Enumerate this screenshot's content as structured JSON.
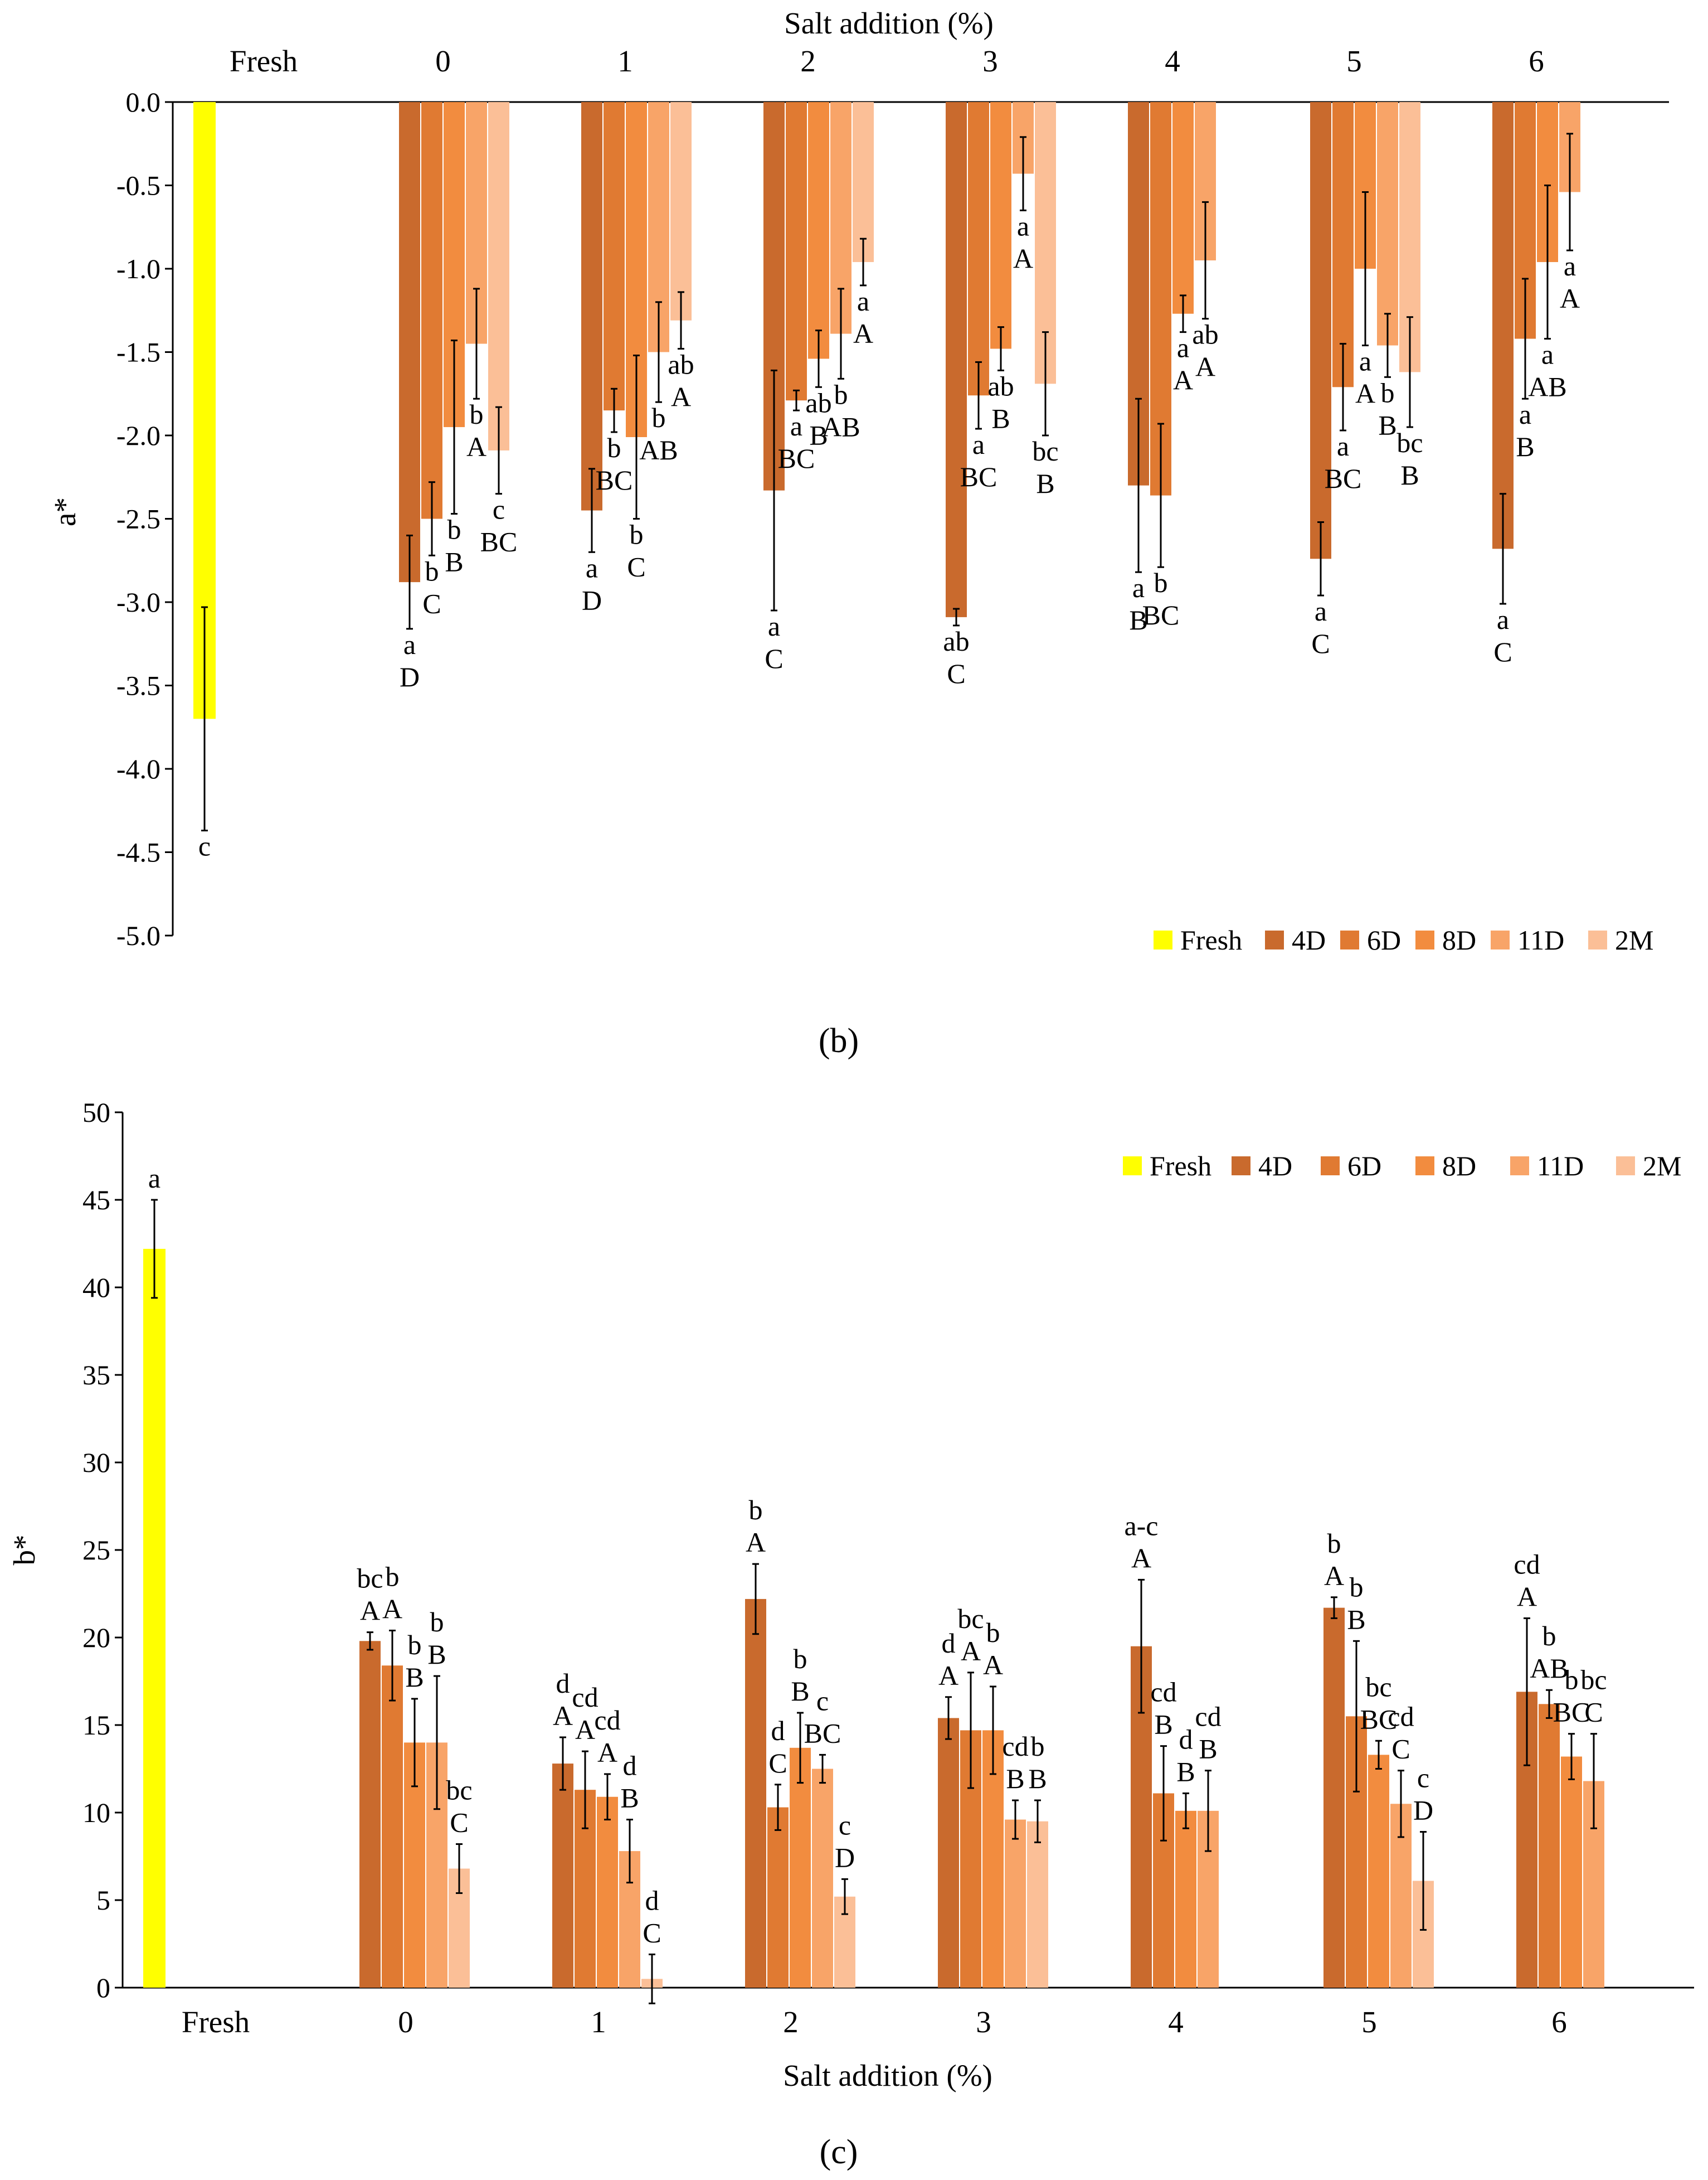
{
  "chart_data": [
    {
      "type": "bar",
      "panel": "(b)",
      "ylabel": "a*",
      "xlabel": "Salt addition (%)",
      "xlabel_position": "top",
      "ylim": [
        -5.0,
        0.0
      ],
      "yticks": [
        0.0,
        -0.5,
        -1.0,
        -1.5,
        -2.0,
        -2.5,
        -3.0,
        -3.5,
        -4.0,
        -4.5,
        -5.0
      ],
      "ytick_labels": [
        "0.0",
        "-0.5",
        "-1.0",
        "-1.5",
        "-2.0",
        "-2.5",
        "-3.0",
        "-3.5",
        "-4.0",
        "-4.5",
        "-5.0"
      ],
      "categories": [
        "Fresh",
        "0",
        "1",
        "2",
        "3",
        "4",
        "5",
        "6"
      ],
      "fresh": {
        "value": -3.7,
        "err": 0.67,
        "label": [
          "c"
        ]
      },
      "series": [
        {
          "name": "4D",
          "color": "#c96a2d",
          "values": [
            null,
            -2.88,
            -2.45,
            -2.33,
            -3.09,
            -2.3,
            -2.74,
            -2.68
          ],
          "errors": [
            null,
            0.28,
            0.25,
            0.72,
            0.05,
            0.52,
            0.22,
            0.33
          ],
          "labels": [
            null,
            [
              "a",
              "D"
            ],
            [
              "a",
              "D"
            ],
            [
              "a",
              "C"
            ],
            [
              "ab",
              "C"
            ],
            [
              "a",
              "B"
            ],
            [
              "a",
              "C"
            ],
            [
              "a",
              "C"
            ]
          ]
        },
        {
          "name": "6D",
          "color": "#e07a32",
          "values": [
            null,
            -2.5,
            -1.85,
            -1.79,
            -1.76,
            -2.36,
            -1.71,
            -1.42
          ],
          "errors": [
            null,
            0.22,
            0.13,
            0.06,
            0.2,
            0.43,
            0.26,
            0.36
          ],
          "labels": [
            null,
            [
              "b",
              "C"
            ],
            [
              "b",
              "BC"
            ],
            [
              "a",
              "BC"
            ],
            [
              "a",
              "BC"
            ],
            [
              "b",
              "BC"
            ],
            [
              "a",
              "BC"
            ],
            [
              "a",
              "B"
            ]
          ]
        },
        {
          "name": "8D",
          "color": "#f28c3f",
          "values": [
            null,
            -1.95,
            -2.01,
            -1.54,
            -1.48,
            -1.27,
            -1.0,
            -0.96
          ],
          "errors": [
            null,
            0.52,
            0.49,
            0.17,
            0.13,
            0.11,
            0.46,
            0.46
          ],
          "labels": [
            null,
            [
              "b",
              "B"
            ],
            [
              "b",
              "C"
            ],
            [
              "ab",
              "B"
            ],
            [
              "ab",
              "B"
            ],
            [
              "a",
              "A"
            ],
            [
              "a",
              "A"
            ],
            [
              "a",
              "AB"
            ]
          ]
        },
        {
          "name": "11D",
          "color": "#f8a468",
          "values": [
            null,
            -1.45,
            -1.5,
            -1.39,
            -0.43,
            -0.95,
            -1.46,
            -0.54
          ],
          "errors": [
            null,
            0.33,
            0.3,
            0.27,
            0.22,
            0.35,
            0.19,
            0.35
          ],
          "labels": [
            null,
            [
              "b",
              "A"
            ],
            [
              "b",
              "AB"
            ],
            [
              "b",
              "AB"
            ],
            [
              "a",
              "A"
            ],
            [
              "ab",
              "A"
            ],
            [
              "b",
              "B"
            ],
            [
              "a",
              "A"
            ]
          ]
        },
        {
          "name": "2M",
          "color": "#fbbf97",
          "values": [
            null,
            -2.09,
            -1.31,
            -0.96,
            -1.69,
            null,
            -1.62,
            null
          ],
          "errors": [
            null,
            0.26,
            0.17,
            0.14,
            0.31,
            null,
            0.33,
            null
          ],
          "labels": [
            null,
            [
              "c",
              "BC"
            ],
            [
              "ab",
              "A"
            ],
            [
              "a",
              "A"
            ],
            [
              "bc",
              "B"
            ],
            null,
            [
              "bc",
              "B"
            ],
            null
          ]
        }
      ],
      "legend": [
        "Fresh",
        "4D",
        "6D",
        "8D",
        "11D",
        "2M"
      ],
      "legend_position": "bottom-right"
    },
    {
      "type": "bar",
      "panel": "(c)",
      "ylabel": "b*",
      "xlabel": "Salt addition (%)",
      "xlabel_position": "bottom",
      "ylim": [
        0,
        50
      ],
      "yticks": [
        0,
        5,
        10,
        15,
        20,
        25,
        30,
        35,
        40,
        45,
        50
      ],
      "ytick_labels": [
        "0",
        "5",
        "10",
        "15",
        "20",
        "25",
        "30",
        "35",
        "40",
        "45",
        "50"
      ],
      "categories": [
        "Fresh",
        "0",
        "1",
        "2",
        "3",
        "4",
        "5",
        "6"
      ],
      "fresh": {
        "value": 42.2,
        "err": 2.8,
        "label": [
          "a"
        ]
      },
      "series": [
        {
          "name": "4D",
          "color": "#c96a2d",
          "values": [
            null,
            19.8,
            12.8,
            22.2,
            15.4,
            19.5,
            21.7,
            16.9
          ],
          "errors": [
            null,
            0.5,
            1.5,
            2.0,
            1.2,
            3.8,
            0.6,
            4.2
          ],
          "labels": [
            null,
            [
              "bc",
              "A"
            ],
            [
              "d",
              "A"
            ],
            [
              "b",
              "A"
            ],
            [
              "d",
              "A"
            ],
            [
              "a-c",
              "A"
            ],
            [
              "b",
              "A"
            ],
            [
              "cd",
              "A"
            ]
          ]
        },
        {
          "name": "6D",
          "color": "#e07a32",
          "values": [
            null,
            18.4,
            11.3,
            10.3,
            14.7,
            11.1,
            15.5,
            16.2
          ],
          "errors": [
            null,
            2.0,
            2.2,
            1.3,
            3.3,
            2.7,
            4.3,
            0.8
          ],
          "labels": [
            null,
            [
              "b",
              "A"
            ],
            [
              "cd",
              "A"
            ],
            [
              "d",
              "C"
            ],
            [
              "bc",
              "A"
            ],
            [
              "cd",
              "B"
            ],
            [
              "b",
              "B"
            ],
            [
              "b",
              "AB"
            ]
          ]
        },
        {
          "name": "8D",
          "color": "#f28c3f",
          "values": [
            null,
            14.0,
            10.9,
            13.7,
            14.7,
            10.1,
            13.3,
            13.2
          ],
          "errors": [
            null,
            2.5,
            1.3,
            2.0,
            2.5,
            1.0,
            0.8,
            1.3
          ],
          "labels": [
            null,
            [
              "b",
              "B"
            ],
            [
              "cd",
              "A"
            ],
            [
              "b",
              "B"
            ],
            [
              "b",
              "A"
            ],
            [
              "d",
              "B"
            ],
            [
              "bc",
              "BC"
            ],
            [
              "b",
              "BC"
            ]
          ]
        },
        {
          "name": "11D",
          "color": "#f8a468",
          "values": [
            null,
            14.0,
            7.8,
            12.5,
            9.6,
            10.1,
            10.5,
            11.8
          ],
          "errors": [
            null,
            3.8,
            1.8,
            0.8,
            1.1,
            2.3,
            1.9,
            2.7
          ],
          "labels": [
            null,
            [
              "b",
              "B"
            ],
            [
              "d",
              "B"
            ],
            [
              "c",
              "BC"
            ],
            [
              "cd",
              "B"
            ],
            [
              "cd",
              "B"
            ],
            [
              "cd",
              "C"
            ],
            [
              "bc",
              "C"
            ]
          ]
        },
        {
          "name": "2M",
          "color": "#fbbf97",
          "values": [
            null,
            6.8,
            0.5,
            5.2,
            9.5,
            null,
            6.1,
            null
          ],
          "errors": [
            null,
            1.4,
            1.4,
            1.0,
            1.2,
            null,
            2.8,
            null
          ],
          "labels": [
            null,
            [
              "bc",
              "C"
            ],
            [
              "d",
              "C"
            ],
            [
              "c",
              "D"
            ],
            [
              "b",
              "B"
            ],
            null,
            [
              "c",
              "D"
            ],
            null
          ]
        }
      ],
      "legend": [
        "Fresh",
        "4D",
        "6D",
        "8D",
        "11D",
        "2M"
      ],
      "legend_position": "top-right"
    }
  ],
  "fresh_color": "#ffff00"
}
